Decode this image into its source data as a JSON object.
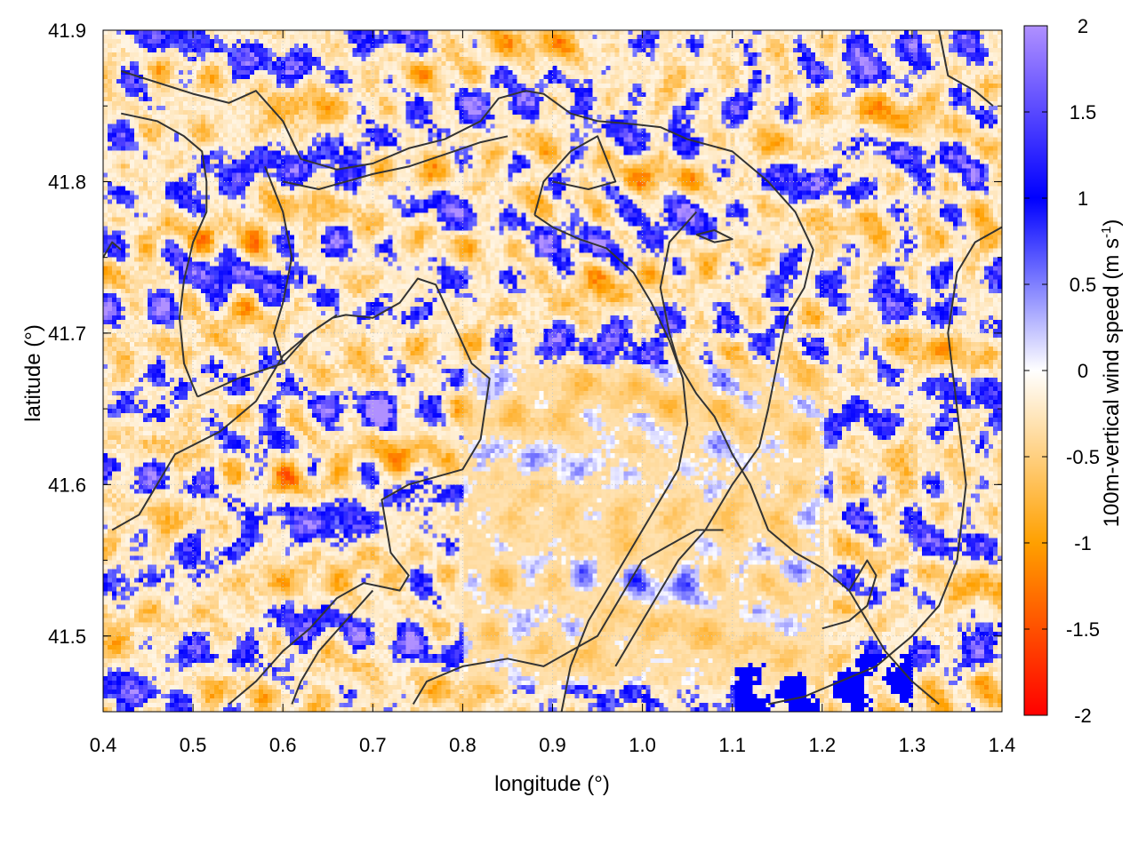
{
  "chart_data": {
    "type": "heatmap",
    "title": "",
    "xlabel": "longitude (°)",
    "ylabel": "latitude (°)",
    "colorbar_label_main": "100m-vertical wind speed (m s",
    "colorbar_label_sup": "-1",
    "colorbar_label_end": ")",
    "xlim": [
      0.4,
      1.4
    ],
    "ylim": [
      41.45,
      41.9
    ],
    "x_ticks": [
      0.4,
      0.5,
      0.6,
      0.7,
      0.8,
      0.9,
      1.0,
      1.1,
      1.2,
      1.3,
      1.4
    ],
    "x_tick_labels": [
      "0.4",
      "0.5",
      "0.6",
      "0.7",
      "0.8",
      "0.9",
      "1.0",
      "1.1",
      "1.2",
      "1.3",
      "1.4"
    ],
    "y_ticks": [
      41.5,
      41.6,
      41.7,
      41.8,
      41.9
    ],
    "y_tick_labels": [
      "41.5",
      "41.6",
      "41.7",
      "41.8",
      "41.9"
    ],
    "zlim": [
      -2,
      2
    ],
    "colorbar_ticks": [
      2,
      1.5,
      1,
      0.5,
      0,
      -0.5,
      -1,
      -1.5,
      -2
    ],
    "colorbar_tick_labels": [
      "2",
      "1.5",
      "1",
      "0.5",
      "0",
      "-0.5",
      "-1",
      "-1.5",
      "-2"
    ],
    "colormap": [
      {
        "value": -2,
        "color": "#ff0000"
      },
      {
        "value": -1,
        "color": "#ffa000"
      },
      {
        "value": 0,
        "color": "#ffffff"
      },
      {
        "value": 1,
        "color": "#0000ff"
      },
      {
        "value": 2,
        "color": "#b090ff"
      }
    ],
    "grid": true,
    "contour_color": "#333333",
    "contour_lines": [
      [
        [
          0.42,
          41.873
        ],
        [
          0.5,
          41.858
        ],
        [
          0.54,
          41.852
        ],
        [
          0.57,
          41.86
        ],
        [
          0.6,
          41.84
        ],
        [
          0.62,
          41.815
        ],
        [
          0.66,
          41.808
        ],
        [
          0.7,
          41.812
        ],
        [
          0.74,
          41.822
        ],
        [
          0.78,
          41.828
        ],
        [
          0.82,
          41.84
        ],
        [
          0.84,
          41.855
        ],
        [
          0.87,
          41.86
        ],
        [
          0.89,
          41.858
        ],
        [
          0.92,
          41.845
        ],
        [
          0.95,
          41.84
        ],
        [
          0.99,
          41.838
        ],
        [
          1.02,
          41.836
        ],
        [
          1.05,
          41.828
        ],
        [
          1.1,
          41.82
        ],
        [
          1.14,
          41.8
        ],
        [
          1.17,
          41.78
        ],
        [
          1.19,
          41.755
        ],
        [
          1.18,
          41.73
        ],
        [
          1.16,
          41.71
        ],
        [
          1.15,
          41.68
        ],
        [
          1.14,
          41.65
        ],
        [
          1.13,
          41.625
        ],
        [
          1.1,
          41.6
        ],
        [
          1.07,
          41.57
        ],
        [
          1.04,
          41.55
        ],
        [
          1.01,
          41.52
        ],
        [
          0.99,
          41.5
        ],
        [
          0.97,
          41.48
        ]
      ],
      [
        [
          0.42,
          41.845
        ],
        [
          0.46,
          41.84
        ],
        [
          0.49,
          41.83
        ],
        [
          0.51,
          41.82
        ],
        [
          0.515,
          41.8
        ],
        [
          0.515,
          41.78
        ],
        [
          0.5,
          41.76
        ],
        [
          0.49,
          41.735
        ],
        [
          0.485,
          41.71
        ],
        [
          0.49,
          41.68
        ],
        [
          0.5,
          41.665
        ],
        [
          0.505,
          41.658
        ]
      ],
      [
        [
          0.505,
          41.658
        ],
        [
          0.55,
          41.67
        ],
        [
          0.6,
          41.68
        ],
        [
          0.63,
          41.7
        ],
        [
          0.655,
          41.71
        ],
        [
          0.67,
          41.712
        ],
        [
          0.7,
          41.71
        ],
        [
          0.73,
          41.72
        ],
        [
          0.75,
          41.736
        ],
        [
          0.77,
          41.732
        ],
        [
          0.79,
          41.706
        ],
        [
          0.81,
          41.68
        ],
        [
          0.83,
          41.67
        ],
        [
          0.82,
          41.63
        ],
        [
          0.8,
          41.61
        ],
        [
          0.74,
          41.6
        ],
        [
          0.71,
          41.59
        ],
        [
          0.72,
          41.555
        ],
        [
          0.74,
          41.54
        ],
        [
          0.73,
          41.53
        ],
        [
          0.69,
          41.535
        ],
        [
          0.66,
          41.525
        ],
        [
          0.63,
          41.505
        ],
        [
          0.6,
          41.49
        ],
        [
          0.57,
          41.47
        ],
        [
          0.54,
          41.455
        ]
      ],
      [
        [
          0.41,
          41.57
        ],
        [
          0.44,
          41.58
        ],
        [
          0.46,
          41.6
        ],
        [
          0.48,
          41.62
        ],
        [
          0.53,
          41.635
        ],
        [
          0.57,
          41.655
        ],
        [
          0.6,
          41.685
        ],
        [
          0.63,
          41.7
        ],
        [
          0.66,
          41.712
        ]
      ],
      [
        [
          0.6,
          41.8
        ],
        [
          0.64,
          41.795
        ],
        [
          0.67,
          41.8
        ],
        [
          0.7,
          41.805
        ],
        [
          0.74,
          41.81
        ],
        [
          0.78,
          41.818
        ],
        [
          0.82,
          41.826
        ],
        [
          0.85,
          41.83
        ]
      ],
      [
        [
          0.58,
          41.81
        ],
        [
          0.6,
          41.78
        ],
        [
          0.61,
          41.75
        ],
        [
          0.6,
          41.72
        ],
        [
          0.59,
          41.7
        ],
        [
          0.6,
          41.68
        ]
      ],
      [
        [
          0.88,
          41.778
        ],
        [
          0.9,
          41.77
        ],
        [
          0.93,
          41.762
        ],
        [
          0.96,
          41.756
        ],
        [
          0.99,
          41.74
        ],
        [
          1.01,
          41.72
        ],
        [
          1.03,
          41.695
        ],
        [
          1.045,
          41.67
        ],
        [
          1.05,
          41.64
        ],
        [
          1.04,
          41.61
        ],
        [
          1.02,
          41.59
        ],
        [
          1.0,
          41.57
        ],
        [
          0.98,
          41.55
        ],
        [
          0.96,
          41.53
        ],
        [
          0.94,
          41.51
        ],
        [
          0.92,
          41.48
        ],
        [
          0.91,
          41.45
        ]
      ],
      [
        [
          0.88,
          41.778
        ],
        [
          0.89,
          41.8
        ],
        [
          0.92,
          41.82
        ],
        [
          0.95,
          41.83
        ],
        [
          0.97,
          41.8
        ],
        [
          0.94,
          41.795
        ],
        [
          0.9,
          41.8
        ]
      ],
      [
        [
          1.33,
          41.455
        ],
        [
          1.3,
          41.47
        ],
        [
          1.27,
          41.49
        ],
        [
          1.25,
          41.51
        ],
        [
          1.23,
          41.53
        ],
        [
          1.2,
          41.545
        ],
        [
          1.17,
          41.555
        ],
        [
          1.14,
          41.57
        ],
        [
          1.12,
          41.6
        ],
        [
          1.1,
          41.62
        ],
        [
          1.08,
          41.645
        ],
        [
          1.06,
          41.66
        ],
        [
          1.04,
          41.68
        ],
        [
          1.03,
          41.7
        ],
        [
          1.02,
          41.73
        ],
        [
          1.03,
          41.76
        ],
        [
          1.06,
          41.78
        ]
      ],
      [
        [
          1.14,
          41.455
        ],
        [
          1.18,
          41.46
        ],
        [
          1.22,
          41.47
        ],
        [
          1.26,
          41.48
        ],
        [
          1.28,
          41.49
        ],
        [
          1.3,
          41.5
        ],
        [
          1.33,
          41.52
        ],
        [
          1.35,
          41.55
        ],
        [
          1.36,
          41.6
        ],
        [
          1.35,
          41.65
        ],
        [
          1.34,
          41.7
        ],
        [
          1.35,
          41.74
        ],
        [
          1.37,
          41.76
        ],
        [
          1.4,
          41.77
        ]
      ],
      [
        [
          1.2,
          41.505
        ],
        [
          1.23,
          41.51
        ],
        [
          1.25,
          41.52
        ],
        [
          1.26,
          41.54
        ],
        [
          1.25,
          41.55
        ],
        [
          1.23,
          41.53
        ]
      ],
      [
        [
          1.33,
          41.9
        ],
        [
          1.34,
          41.87
        ],
        [
          1.37,
          41.86
        ],
        [
          1.39,
          41.85
        ]
      ],
      [
        [
          1.06,
          41.765
        ],
        [
          1.08,
          41.76
        ],
        [
          1.1,
          41.762
        ],
        [
          1.08,
          41.768
        ],
        [
          1.06,
          41.765
        ]
      ],
      [
        [
          0.745,
          41.455
        ],
        [
          0.76,
          41.47
        ],
        [
          0.8,
          41.48
        ],
        [
          0.85,
          41.485
        ],
        [
          0.89,
          41.48
        ],
        [
          0.92,
          41.49
        ],
        [
          0.95,
          41.5
        ],
        [
          0.98,
          41.53
        ],
        [
          1.0,
          41.55
        ],
        [
          1.03,
          41.56
        ],
        [
          1.06,
          41.57
        ],
        [
          1.09,
          41.57
        ]
      ],
      [
        [
          0.61,
          41.455
        ],
        [
          0.62,
          41.47
        ],
        [
          0.64,
          41.49
        ],
        [
          0.67,
          41.51
        ],
        [
          0.7,
          41.53
        ]
      ],
      [
        [
          0.4,
          41.75
        ],
        [
          0.41,
          41.76
        ],
        [
          0.42,
          41.755
        ]
      ]
    ]
  }
}
